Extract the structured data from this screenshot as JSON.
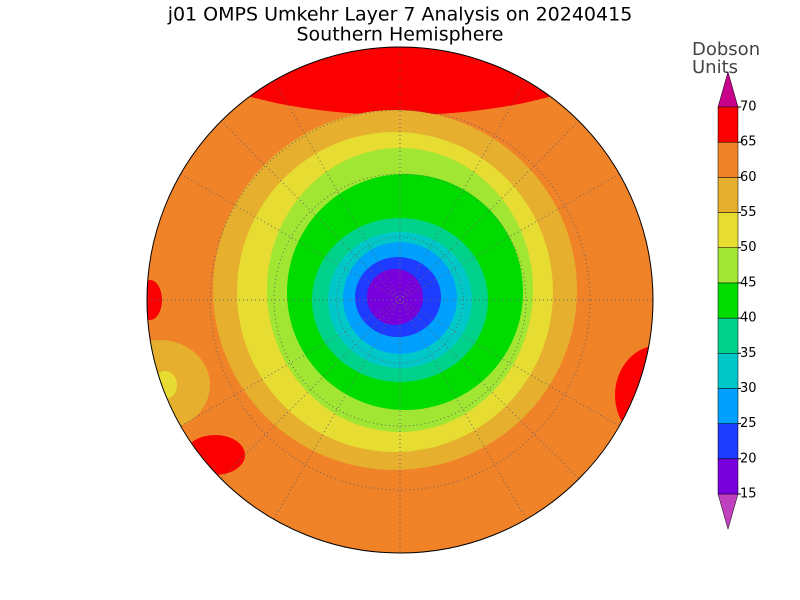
{
  "title": "j01 OMPS Umkehr Layer 7 Analysis on 20240415",
  "subtitle": "Southern Hemisphere",
  "colorbar": {
    "label": [
      "Dobson",
      "Units"
    ],
    "ticks": [
      15,
      20,
      25,
      30,
      35,
      40,
      45,
      50,
      55,
      60,
      65,
      70
    ],
    "colors": [
      "#c040c0",
      "#7800dc",
      "#1e3cff",
      "#00a0ff",
      "#00c8c8",
      "#00d28c",
      "#00dc00",
      "#a0e632",
      "#e6dc32",
      "#e6af2d",
      "#f08228",
      "#fa0000",
      "#c8008c"
    ]
  }
}
